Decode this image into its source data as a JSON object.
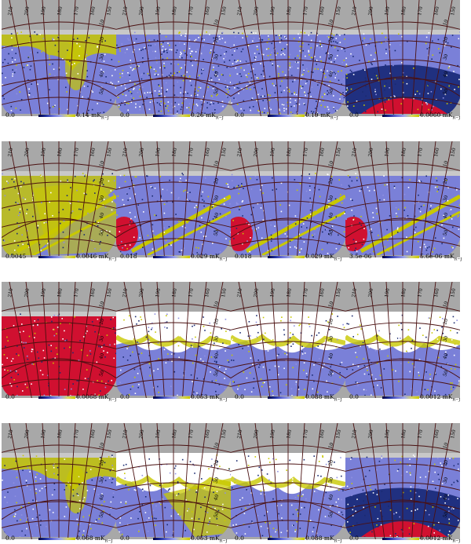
{
  "colors": {
    "background_gray": "#a8a8a8",
    "grid_line": "#4a1010",
    "low": "#2a3a9a",
    "mid": "#7a80d8",
    "high": "#c8c800",
    "hot": "#d01030",
    "blank": "#ffffff"
  },
  "axis_labels": {
    "longitude": [
      "210",
      "200",
      "190",
      "180",
      "170",
      "160",
      "150"
    ],
    "latitude": [
      "10",
      "20",
      "30",
      "40",
      "50"
    ]
  },
  "rows": [
    {
      "panels": [
        {
          "min": "0.0",
          "max": "0.14",
          "unit": "mK",
          "sub": "R−J",
          "style": "mixed",
          "hot": false
        },
        {
          "min": "0.0",
          "max": "0.26",
          "unit": "mK",
          "sub": "R−J",
          "style": "speckle",
          "hot": false
        },
        {
          "min": "0.0",
          "max": "0.19",
          "unit": "mK",
          "sub": "R−J",
          "style": "speckle",
          "hot": false
        },
        {
          "min": "0.0",
          "max": "0.0060",
          "unit": "mK",
          "sub": "R−J",
          "style": "dark",
          "hot": true
        }
      ]
    },
    {
      "panels": [
        {
          "min": "0.0045",
          "max": "0.0046",
          "unit": "mK",
          "sub": "R−J",
          "style": "stripe",
          "hot": false
        },
        {
          "min": "0.018",
          "max": "0.029",
          "unit": "mK",
          "sub": "R−J",
          "style": "stripe",
          "hot": true
        },
        {
          "min": "0.018",
          "max": "0.029",
          "unit": "mK",
          "sub": "R−J",
          "style": "stripe",
          "hot": true
        },
        {
          "min": "3.5e-06",
          "max": "5.6e-06",
          "unit": "mK",
          "sub": "R−J",
          "style": "stripe",
          "hot": true
        }
      ]
    },
    {
      "panels": [
        {
          "min": "0.0",
          "max": "0.0068",
          "unit": "mK",
          "sub": "R−J",
          "style": "red",
          "hot": true
        },
        {
          "min": "0.0",
          "max": "0.053",
          "unit": "mK",
          "sub": "R−J",
          "style": "white",
          "hot": false
        },
        {
          "min": "0.0",
          "max": "0.038",
          "unit": "mK",
          "sub": "R−J",
          "style": "white",
          "hot": false
        },
        {
          "min": "0.0",
          "max": "0.0012",
          "unit": "mK",
          "sub": "R−J",
          "style": "white",
          "hot": false
        }
      ]
    },
    {
      "panels": [
        {
          "min": "0.0",
          "max": "0.068",
          "unit": "mK",
          "sub": "R−J",
          "style": "mixed",
          "hot": false
        },
        {
          "min": "0.0",
          "max": "0.053",
          "unit": "mK",
          "sub": "R−J",
          "style": "white2",
          "hot": false
        },
        {
          "min": "0.0",
          "max": "0.038",
          "unit": "mK",
          "sub": "R−J",
          "style": "white",
          "hot": false
        },
        {
          "min": "0.0",
          "max": "0.0012",
          "unit": "mK",
          "sub": "R−J",
          "style": "dark",
          "hot": true
        }
      ]
    }
  ]
}
